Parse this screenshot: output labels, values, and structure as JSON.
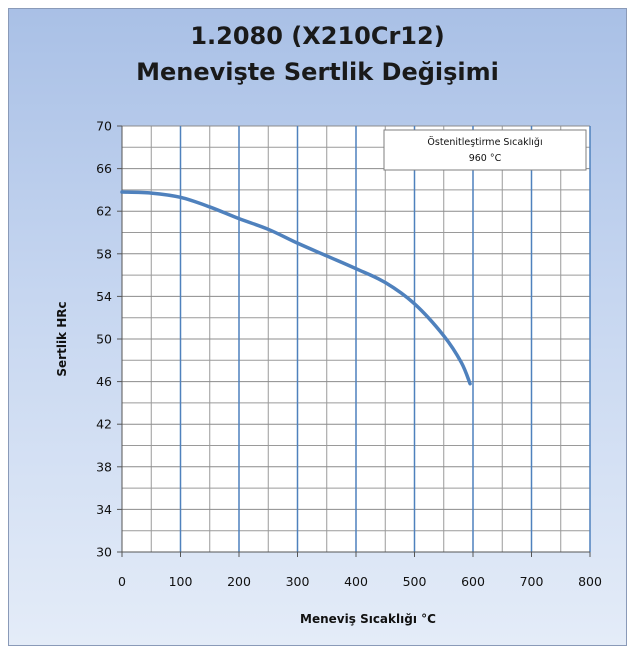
{
  "chart_data": {
    "type": "line",
    "title": [
      "1.2080 (X210Cr12)",
      "Menevişte Sertlik Değişimi"
    ],
    "xlabel": "Meneviş Sıcaklığı  °C",
    "ylabel": "Sertlik HRc",
    "xlim": [
      0,
      800
    ],
    "ylim": [
      30,
      70
    ],
    "x_ticks": [
      0,
      100,
      200,
      300,
      400,
      500,
      600,
      700,
      800
    ],
    "y_ticks": [
      30,
      34,
      38,
      42,
      46,
      50,
      54,
      58,
      62,
      66,
      70
    ],
    "grid": true,
    "series": [
      {
        "x": [
          0,
          50,
          100,
          150,
          200,
          250,
          300,
          350,
          400,
          450,
          500,
          550,
          580,
          595
        ],
        "y": [
          63.8,
          63.7,
          63.3,
          62.4,
          61.3,
          60.3,
          59.0,
          57.8,
          56.6,
          55.3,
          53.3,
          50.3,
          47.8,
          45.8
        ],
        "color": "#4f81bd"
      }
    ],
    "annotation": {
      "line1": "Östenitleştirme Sıcaklığı",
      "line2": "960 °C"
    },
    "plot_area_color": "#ffffff",
    "major_grid_color": "#4f81bd",
    "minor_grid_color": "#9a9a9a"
  }
}
